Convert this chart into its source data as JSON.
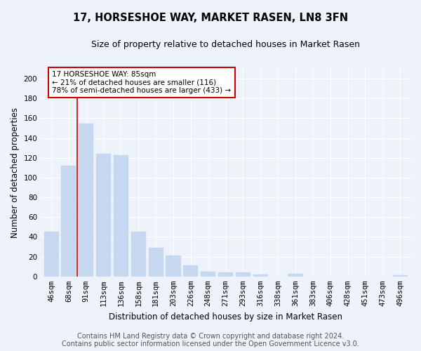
{
  "title": "17, HORSESHOE WAY, MARKET RASEN, LN8 3FN",
  "subtitle": "Size of property relative to detached houses in Market Rasen",
  "xlabel": "Distribution of detached houses by size in Market Rasen",
  "ylabel": "Number of detached properties",
  "categories": [
    "46sqm",
    "68sqm",
    "91sqm",
    "113sqm",
    "136sqm",
    "158sqm",
    "181sqm",
    "203sqm",
    "226sqm",
    "248sqm",
    "271sqm",
    "293sqm",
    "316sqm",
    "338sqm",
    "361sqm",
    "383sqm",
    "406sqm",
    "428sqm",
    "451sqm",
    "473sqm",
    "496sqm"
  ],
  "values": [
    45,
    112,
    155,
    124,
    123,
    45,
    29,
    21,
    11,
    5,
    4,
    4,
    2,
    0,
    3,
    0,
    0,
    0,
    0,
    0,
    1
  ],
  "bar_color": "#c5d8f0",
  "bar_edge_color": "#c5d8f0",
  "bar_width": 0.85,
  "vline_x": 1.5,
  "vline_color": "#cc0000",
  "annotation_text": "17 HORSESHOE WAY: 85sqm\n← 21% of detached houses are smaller (116)\n78% of semi-detached houses are larger (433) →",
  "annotation_box_color": "#ffffff",
  "annotation_box_edge": "#cc0000",
  "ylim": [
    0,
    210
  ],
  "yticks": [
    0,
    20,
    40,
    60,
    80,
    100,
    120,
    140,
    160,
    180,
    200
  ],
  "footer1": "Contains HM Land Registry data © Crown copyright and database right 2024.",
  "footer2": "Contains public sector information licensed under the Open Government Licence v3.0.",
  "bg_color": "#eef2fa",
  "plot_bg_color": "#eef2fa",
  "title_fontsize": 10.5,
  "subtitle_fontsize": 9,
  "axis_label_fontsize": 8.5,
  "tick_fontsize": 7.5,
  "annotation_fontsize": 7.5,
  "footer_fontsize": 7
}
